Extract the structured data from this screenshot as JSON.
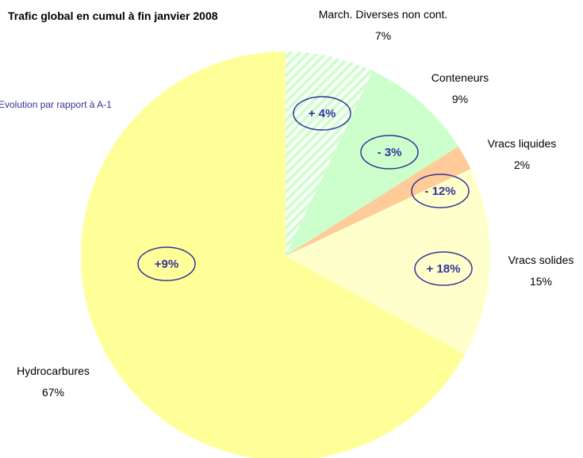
{
  "chart_data": {
    "type": "pie",
    "title": "Trafic global en cumul à fin janvier 2008",
    "categories": [
      "March. Diverses non cont.",
      "Conteneurs",
      "Vracs liquides",
      "Vracs solides",
      "Hydrocarbures"
    ],
    "values": [
      7,
      9,
      2,
      15,
      67
    ],
    "value_labels": [
      "7%",
      "9%",
      "2%",
      "15%",
      "67%"
    ],
    "colors": [
      "#ccffcc",
      "#ccffcc",
      "#ffcc99",
      "#ffffcc",
      "#ffff99"
    ],
    "hatched": [
      true,
      false,
      false,
      false,
      false
    ],
    "annotations": {
      "title": "Evolution par rapport à A-1",
      "labels": [
        "+ 4%",
        "- 3%",
        "- 12%",
        "+ 18%",
        "+9%"
      ]
    }
  }
}
